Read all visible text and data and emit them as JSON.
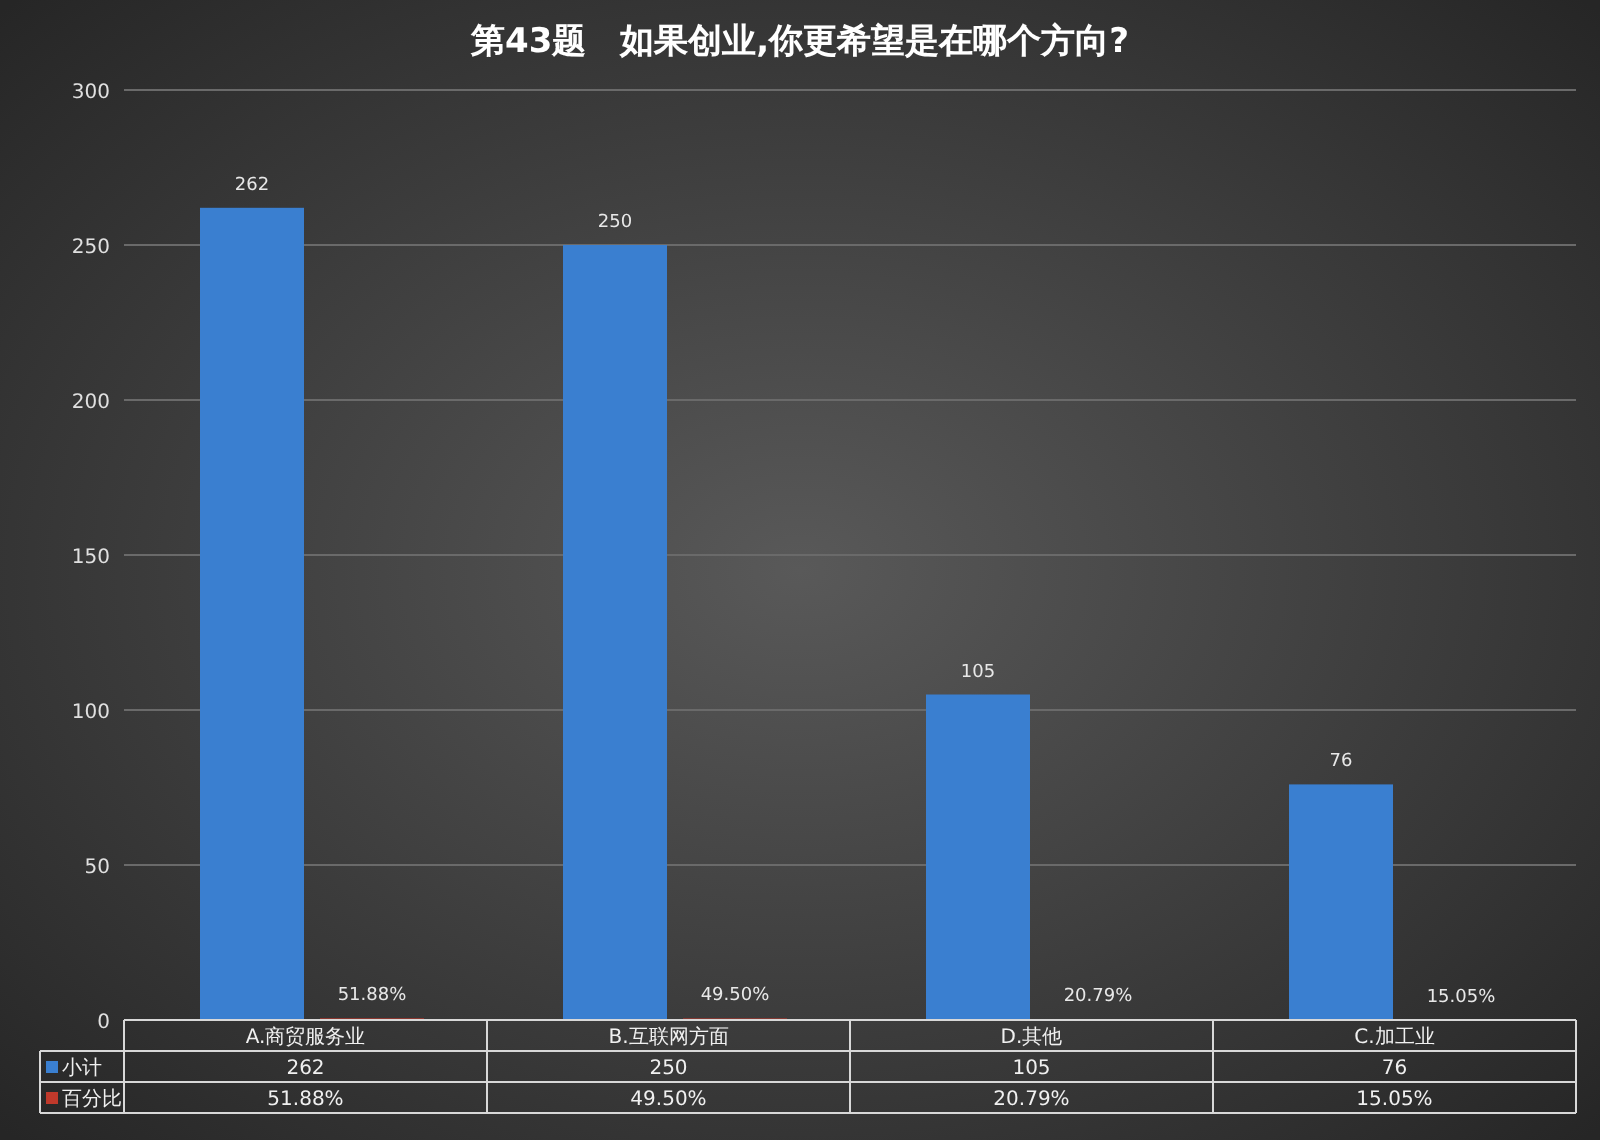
{
  "chart_data": {
    "type": "bar",
    "title": "第43题　如果创业,你更希望是在哪个方向?",
    "categories": [
      "A.商贸服务业",
      "B.互联网方面",
      "D.其他",
      "C.加工业"
    ],
    "series": [
      {
        "name": "小计",
        "color": "#3a7fd0",
        "values": [
          262,
          250,
          105,
          76
        ],
        "value_labels": [
          "262",
          "250",
          "105",
          "76"
        ]
      },
      {
        "name": "百分比",
        "color": "#c0392b",
        "values": [
          0.5188,
          0.495,
          0.2079,
          0.1505
        ],
        "value_labels": [
          "51.88%",
          "49.50%",
          "20.79%",
          "15.05%"
        ]
      }
    ],
    "ylim": [
      0,
      300
    ],
    "yticks": [
      0,
      50,
      100,
      150,
      200,
      250,
      300
    ],
    "grid": "y",
    "legend": "bottom"
  }
}
